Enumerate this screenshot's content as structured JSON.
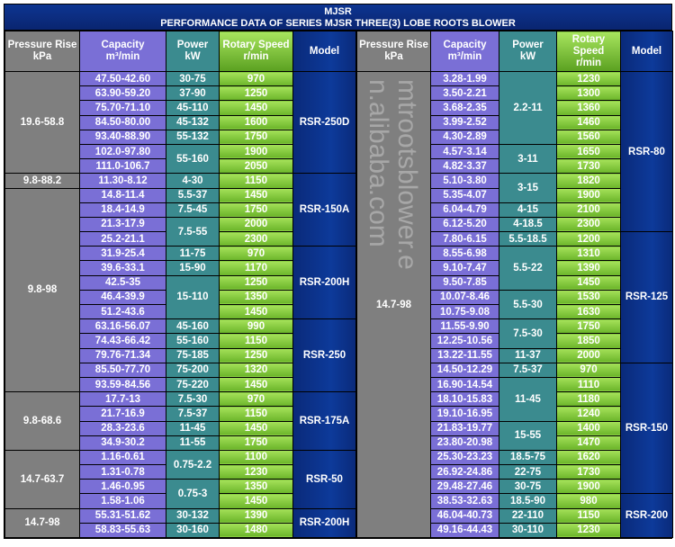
{
  "title": {
    "brand": "MJSR",
    "subtitle": "PERFORMANCE DATA OF SERIES MJSR THREE(3) LOBE ROOTS BLOWER"
  },
  "headers": {
    "left": [
      "Pressure Rise\nkPa",
      "Capacity\nm³/min",
      "Power\nkW",
      "Rotary Speed\nr/min",
      "Model"
    ],
    "right": [
      "Pressure Rise\nkPa",
      "Capacity\nm³/min",
      "Power\nkW",
      "Rotary\nSpeed\nr/min",
      "Model"
    ]
  },
  "left": {
    "pressure": [
      {
        "v": "19.6-58.8",
        "span": 7
      },
      {
        "v": "9.8-88.2",
        "span": 1
      },
      {
        "v": "9.8-98",
        "span": 14
      },
      {
        "v": "9.8-68.6",
        "span": 4
      },
      {
        "v": "14.7-63.7",
        "span": 4
      },
      {
        "v": "14.7-98",
        "span": 2
      }
    ],
    "capacity": [
      "47.50-42.60",
      "63.90-59.20",
      "75.70-71.10",
      "84.50-80.00",
      "93.40-88.90",
      "102.0-97.80",
      "111.0-106.7",
      "11.30-8.12",
      "14.8-11.4",
      "18.4-14.9",
      "21.3-17.9",
      "25.2-21.1",
      "31.9-25.4",
      "39.6-33.1",
      "42.5-35",
      "46.4-39.9",
      "51.2-43.6",
      "63.16-56.07",
      "74.43-66.42",
      "79.76-71.34",
      "85.50-77.70",
      "93.59-84.56",
      "17.7-13",
      "21.7-16.9",
      "28.3-23.6",
      "34.9-30.2",
      "1.16-0.61",
      "1.31-0.78",
      "1.46-0.95",
      "1.58-1.06",
      "55.31-51.62",
      "58.83-55.63"
    ],
    "power": [
      {
        "v": "30-75",
        "span": 1
      },
      {
        "v": "37-90",
        "span": 1
      },
      {
        "v": "45-110",
        "span": 1
      },
      {
        "v": "45-132",
        "span": 1
      },
      {
        "v": "55-132",
        "span": 1
      },
      {
        "v": "55-160",
        "span": 2
      },
      {
        "v": "4-30",
        "span": 1
      },
      {
        "v": "5.5-37",
        "span": 1
      },
      {
        "v": "7.5-45",
        "span": 1
      },
      {
        "v": "7.5-55",
        "span": 2
      },
      {
        "v": "11-75",
        "span": 1
      },
      {
        "v": "15-90",
        "span": 1
      },
      {
        "v": "15-110",
        "span": 3
      },
      {
        "v": "45-160",
        "span": 1
      },
      {
        "v": "55-160",
        "span": 1
      },
      {
        "v": "75-185",
        "span": 1
      },
      {
        "v": "75-200",
        "span": 1
      },
      {
        "v": "75-220",
        "span": 1
      },
      {
        "v": "7.5-30",
        "span": 1
      },
      {
        "v": "7.5-37",
        "span": 1
      },
      {
        "v": "11-45",
        "span": 1
      },
      {
        "v": "11-55",
        "span": 1
      },
      {
        "v": "0.75-2.2",
        "span": 2
      },
      {
        "v": "0.75-3",
        "span": 2
      },
      {
        "v": "30-132",
        "span": 1
      },
      {
        "v": "30-160",
        "span": 1
      }
    ],
    "speed": [
      "970",
      "1250",
      "1450",
      "1600",
      "1750",
      "1900",
      "2050",
      "1150",
      "1450",
      "1750",
      "2000",
      "2300",
      "970",
      "1170",
      "1250",
      "1350",
      "1450",
      "990",
      "1150",
      "1250",
      "1320",
      "1450",
      "970",
      "1150",
      "1450",
      "1750",
      "1100",
      "1230",
      "1350",
      "1450",
      "1390",
      "1480"
    ],
    "model": [
      {
        "v": "RSR-250D",
        "span": 7
      },
      {
        "v": "RSR-150A",
        "span": 5
      },
      {
        "v": "RSR-200H",
        "span": 5
      },
      {
        "v": "RSR-250",
        "span": 5
      },
      {
        "v": "RSR-175A",
        "span": 4
      },
      {
        "v": "RSR-50",
        "span": 4
      },
      {
        "v": "RSR-200H",
        "span": 2
      }
    ]
  },
  "right": {
    "pressure": [
      {
        "v": "14.7-98",
        "span": 32
      }
    ],
    "capacity": [
      "3.28-1.99",
      "3.50-2.21",
      "3.68-2.35",
      "3.99-2.52",
      "4.30-2.89",
      "4.57-3.14",
      "4.82-3.37",
      "5.10-3.80",
      "5.35-4.07",
      "6.04-4.79",
      "6.12-5.20",
      "7.80-6.15",
      "8.55-6.98",
      "9.10-7.47",
      "9.50-7.85",
      "10.07-8.46",
      "10.75-9.08",
      "11.55-9.90",
      "12.25-10.56",
      "13.22-11.55",
      "14.50-12.29",
      "16.90-14.54",
      "18.10-15.83",
      "19.10-16.95",
      "21.83-19.77",
      "23.80-20.98",
      "25.30-23.23",
      "26.92-24.86",
      "29.48-27.46",
      "38.53-32.63",
      "46.04-40.73",
      "49.16-44.43"
    ],
    "power": [
      {
        "v": "2.2-11",
        "span": 5
      },
      {
        "v": "3-11",
        "span": 2
      },
      {
        "v": "3-15",
        "span": 2
      },
      {
        "v": "4-15",
        "span": 1
      },
      {
        "v": "4-18.5",
        "span": 1
      },
      {
        "v": "5.5-18.5",
        "span": 1
      },
      {
        "v": "5.5-22",
        "span": 3
      },
      {
        "v": "5.5-30",
        "span": 2
      },
      {
        "v": "7.5-30",
        "span": 2
      },
      {
        "v": "11-37",
        "span": 1
      },
      {
        "v": "7.5-37",
        "span": 1
      },
      {
        "v": "11-45",
        "span": 3
      },
      {
        "v": "15-55",
        "span": 2
      },
      {
        "v": "18.5-75",
        "span": 1
      },
      {
        "v": "22-75",
        "span": 1
      },
      {
        "v": "30-75",
        "span": 1
      },
      {
        "v": "18.5-90",
        "span": 1
      },
      {
        "v": "22-110",
        "span": 1
      },
      {
        "v": "30-110",
        "span": 1
      }
    ],
    "speed": [
      "1230",
      "1300",
      "1360",
      "1460",
      "1560",
      "1650",
      "1730",
      "1820",
      "1900",
      "2100",
      "2300",
      "1200",
      "1310",
      "1390",
      "1450",
      "1530",
      "1630",
      "1750",
      "1850",
      "2000",
      "970",
      "1110",
      "1180",
      "1240",
      "1400",
      "1470",
      "1620",
      "1730",
      "1900",
      "980",
      "1150",
      "1230"
    ],
    "model": [
      {
        "v": "RSR-80",
        "span": 11
      },
      {
        "v": "RSR-125",
        "span": 9
      },
      {
        "v": "RSR-150",
        "span": 9
      },
      {
        "v": "RSR-200",
        "span": 3
      }
    ]
  },
  "watermark": "mtrootsblower.en.alibaba.com"
}
